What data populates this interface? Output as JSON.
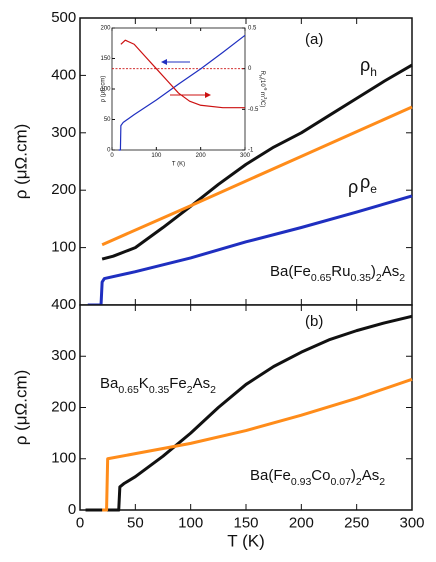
{
  "chart_data": [
    {
      "type": "line",
      "xlim": [
        0,
        300
      ],
      "xticks": [
        0,
        50,
        100,
        150,
        200,
        250,
        300
      ],
      "xtick_labels": false,
      "ylim": [
        0,
        500
      ],
      "yticks": [
        100,
        200,
        300,
        400,
        500
      ],
      "ylabel": "ρ (μΩ.cm)",
      "series": [
        {
          "name": "ρ",
          "name_sub": "h",
          "color": "#111111",
          "x": [
            20,
            30,
            50,
            75,
            100,
            125,
            150,
            175,
            200,
            225,
            250,
            275,
            300
          ],
          "values": [
            80,
            85,
            100,
            135,
            172,
            210,
            245,
            275,
            300,
            330,
            360,
            390,
            418
          ]
        },
        {
          "name": "ρ",
          "name_sub": "e",
          "color": "#ff8c1a",
          "x": [
            20,
            100,
            200,
            300
          ],
          "values": [
            105,
            173,
            259,
            345
          ]
        },
        {
          "name": "ρ",
          "color": "#1f2fc0",
          "x": [
            7,
            19,
            20,
            22,
            50,
            100,
            150,
            200,
            250,
            300
          ],
          "values": [
            0,
            0,
            40,
            46,
            58,
            82,
            110,
            135,
            162,
            190
          ]
        }
      ],
      "annotations": [
        {
          "parts": [
            {
              "t": "(a)"
            }
          ]
        },
        {
          "parts": [
            {
              "t": "Ba(Fe"
            },
            {
              "t": "0.65",
              "sub": true
            },
            {
              "t": "Ru"
            },
            {
              "t": "0.35",
              "sub": true
            },
            {
              "t": ")"
            },
            {
              "t": "2",
              "sub": true
            },
            {
              "t": "As"
            },
            {
              "t": "2",
              "sub": true
            }
          ]
        }
      ]
    },
    {
      "type": "line",
      "xlim": [
        0,
        300
      ],
      "xticks": [
        0,
        50,
        100,
        150,
        200,
        250,
        300
      ],
      "xlabel": "T (K)",
      "ylim": [
        0,
        400
      ],
      "yticks": [
        0,
        100,
        200,
        300,
        400
      ],
      "ylabel": "ρ (μΩ.cm)",
      "series": [
        {
          "color": "#111111",
          "x": [
            5,
            35,
            36,
            40,
            50,
            75,
            100,
            125,
            150,
            175,
            200,
            225,
            250,
            275,
            300
          ],
          "values": [
            0,
            0,
            45,
            52,
            65,
            105,
            150,
            200,
            245,
            280,
            308,
            332,
            350,
            365,
            378
          ]
        },
        {
          "color": "#ff8c1a",
          "x": [
            20,
            24,
            25,
            50,
            100,
            150,
            200,
            250,
            300
          ],
          "values": [
            0,
            0,
            100,
            110,
            130,
            155,
            185,
            218,
            255
          ]
        }
      ],
      "annotations": [
        {
          "parts": [
            {
              "t": "(b)"
            }
          ]
        },
        {
          "parts": [
            {
              "t": "Ba"
            },
            {
              "t": "0.65",
              "sub": true
            },
            {
              "t": "K"
            },
            {
              "t": "0.35",
              "sub": true
            },
            {
              "t": "Fe"
            },
            {
              "t": "2",
              "sub": true
            },
            {
              "t": "As"
            },
            {
              "t": "2",
              "sub": true
            }
          ]
        },
        {
          "parts": [
            {
              "t": "Ba(Fe"
            },
            {
              "t": "0.93",
              "sub": true
            },
            {
              "t": "Co"
            },
            {
              "t": "0.07",
              "sub": true
            },
            {
              "t": ")"
            },
            {
              "t": "2",
              "sub": true
            },
            {
              "t": "As"
            },
            {
              "t": "2",
              "sub": true
            }
          ]
        }
      ]
    },
    {
      "type": "line",
      "xlim": [
        0,
        300
      ],
      "xticks": [
        0,
        100,
        200,
        300
      ],
      "xlabel": "T (K)",
      "ylim": [
        0,
        200
      ],
      "yticks": [
        0,
        50,
        100,
        150,
        200
      ],
      "ylabel": "ρ (μΩ.cm)",
      "y2lim": [
        -1,
        0.5
      ],
      "y2ticks": [
        -1,
        -0.5,
        0,
        0.5
      ],
      "y2label": [
        {
          "t": "R"
        },
        {
          "t": "H",
          "sub": true
        },
        {
          "t": "(10"
        },
        {
          "t": "-9",
          "sup": true
        },
        {
          "t": " m"
        },
        {
          "t": "3",
          "sup": true
        },
        {
          "t": "/C)"
        }
      ],
      "reference_line": {
        "axis": "y2",
        "value": 0,
        "color": "#cc1010"
      },
      "series": [
        {
          "color": "#1f2fc0",
          "x": [
            15,
            19,
            20,
            25,
            50,
            100,
            150,
            200,
            250,
            300
          ],
          "values": [
            0,
            0,
            40,
            45,
            58,
            82,
            108,
            133,
            160,
            188
          ]
        },
        {
          "color": "#cc1010",
          "axis": "y2",
          "x": [
            20,
            30,
            50,
            75,
            100,
            125,
            150,
            175,
            200,
            250,
            300
          ],
          "values": [
            0.3,
            0.35,
            0.3,
            0.15,
            0.0,
            -0.15,
            -0.3,
            -0.4,
            -0.45,
            -0.48,
            -0.48
          ]
        }
      ]
    }
  ]
}
